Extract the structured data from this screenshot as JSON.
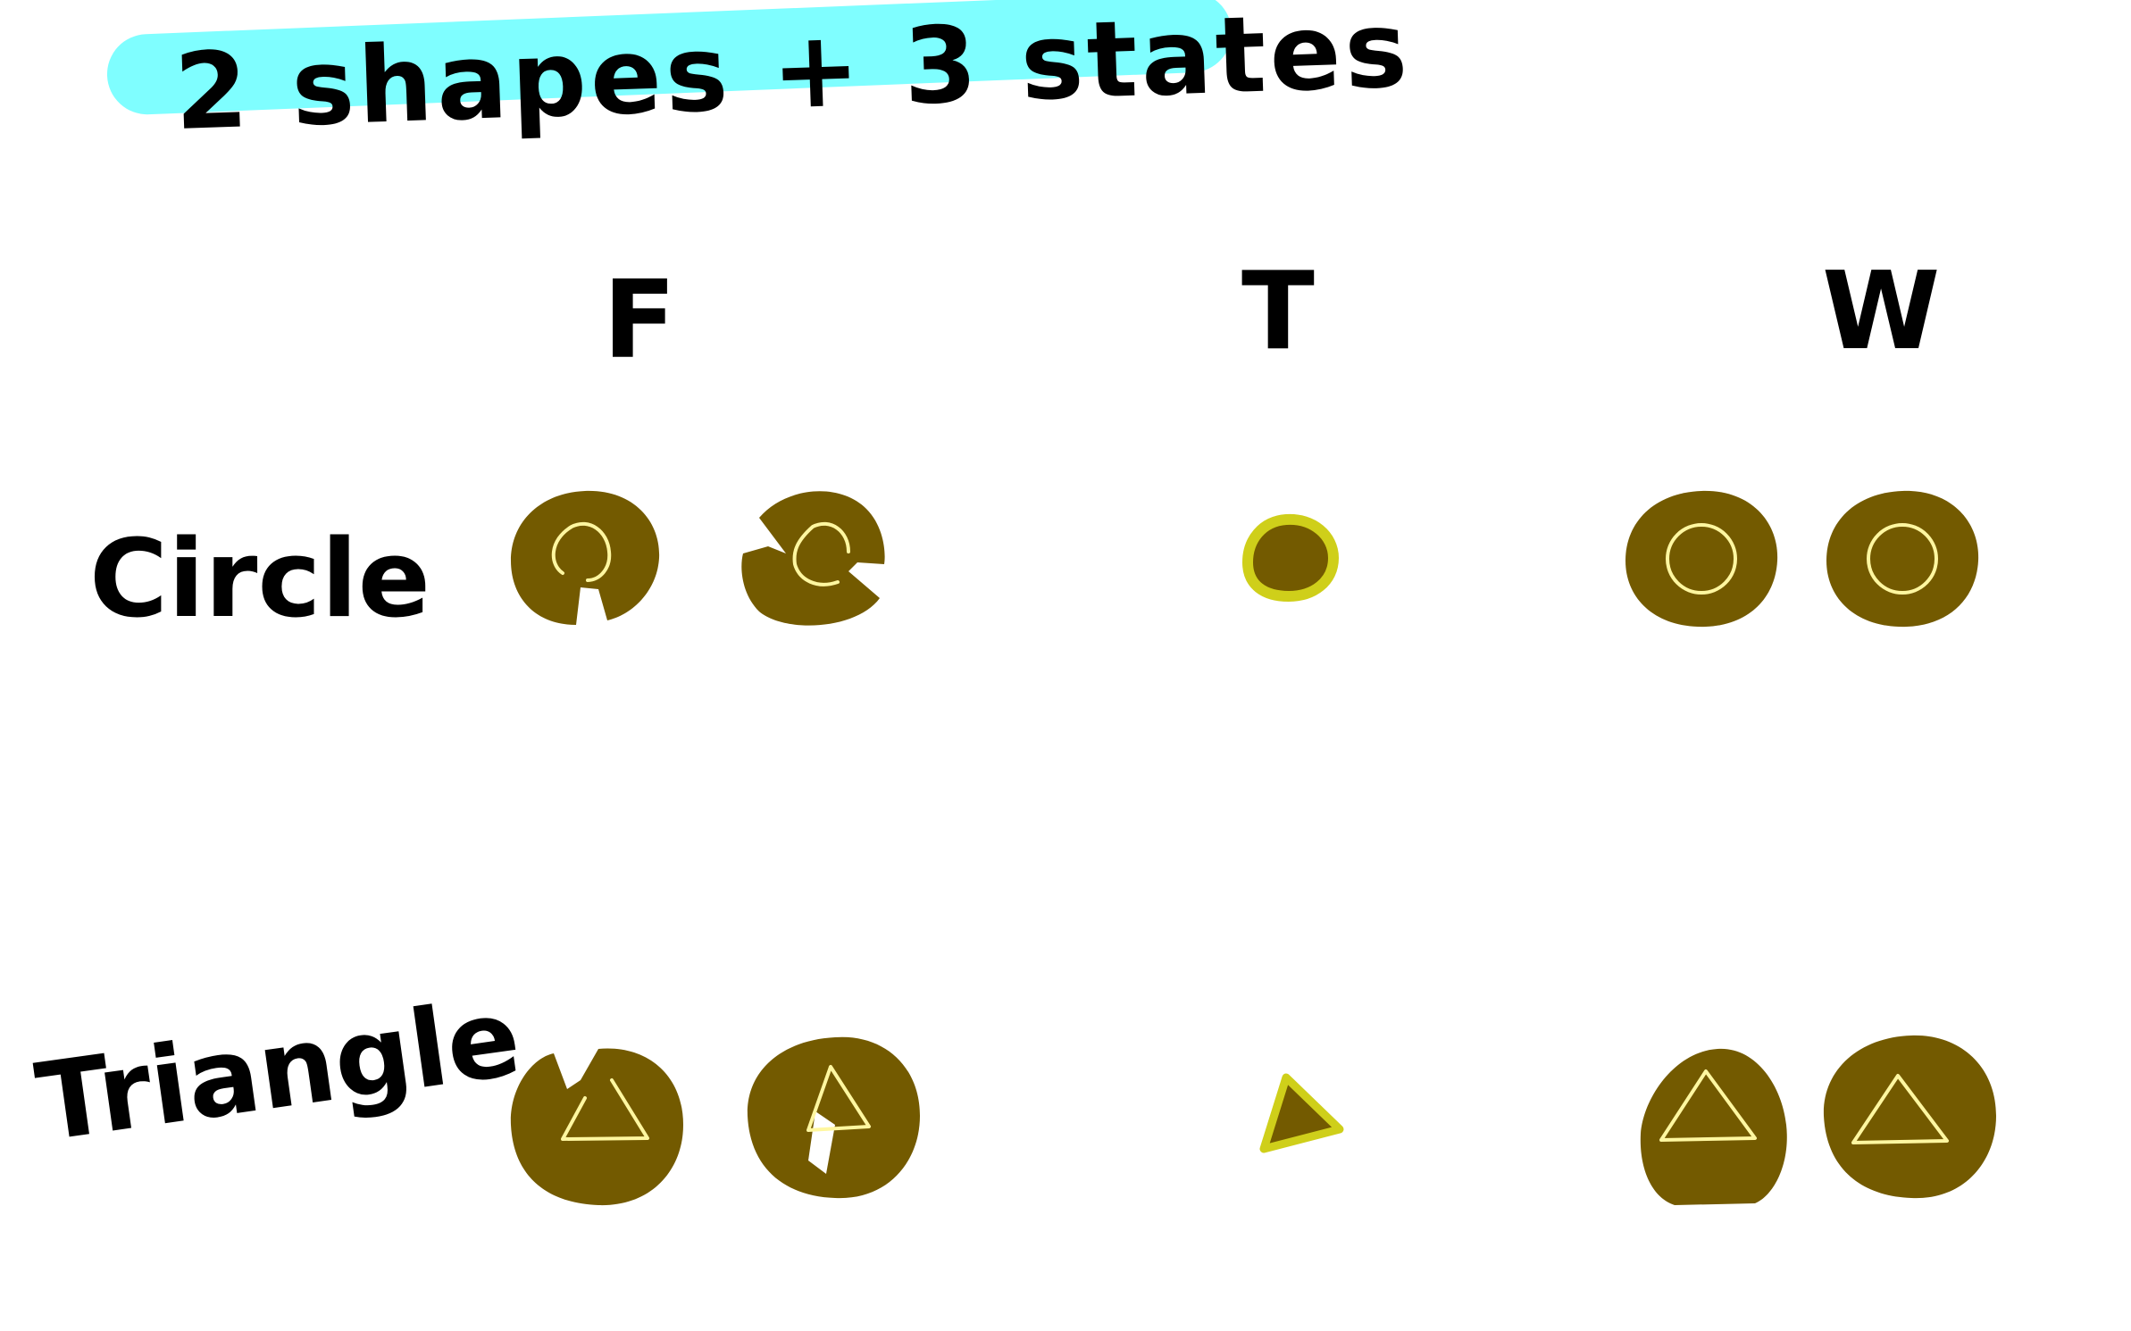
{
  "title": "2 shapes + 3 states",
  "columns": [
    "F",
    "T",
    "W"
  ],
  "rows": [
    "Circle",
    "Triangle"
  ],
  "colors": {
    "highlight": "#7ffeff",
    "fill_brown": "#735a00",
    "outline_yellow": "#fff7a0",
    "true_yellow": "#cfcf1a"
  },
  "cells": {
    "circle": {
      "F": [
        "broken-circle-icon",
        "broken-circle-icon"
      ],
      "T": [
        "dot-icon"
      ],
      "W": [
        "circle-in-disc-icon",
        "circle-in-disc-icon"
      ]
    },
    "triangle": {
      "F": [
        "broken-triangle-icon",
        "broken-triangle-icon"
      ],
      "T": [
        "small-triangle-icon"
      ],
      "W": [
        "triangle-in-disc-icon",
        "triangle-in-disc-icon"
      ]
    }
  }
}
